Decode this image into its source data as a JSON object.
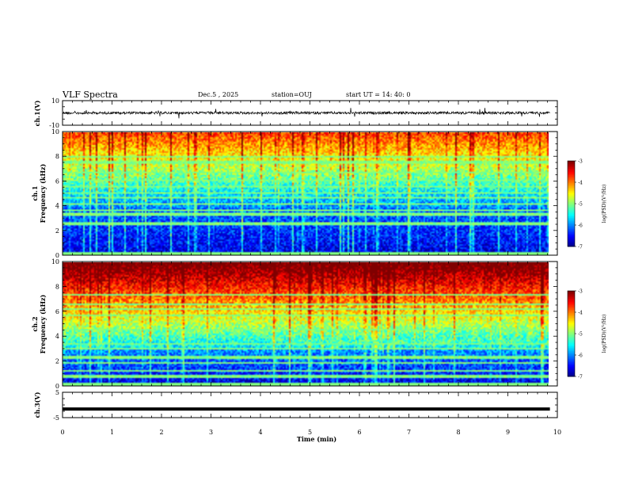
{
  "header": {
    "title": "VLF Spectra",
    "date": "Dec.5 , 2025",
    "station": "station=OUJ",
    "start": "start UT = 14: 40: 0"
  },
  "chart_data": [
    {
      "type": "line",
      "name": "ch1-waveform",
      "ylabel": "ch.1(V)",
      "ylim": [
        -10,
        10
      ],
      "ytick_labels": [
        "10",
        "-10"
      ],
      "baseline": 0,
      "description_values": "noisy waveform near 0 V with spikes"
    },
    {
      "type": "heatmap",
      "name": "ch1-spectrogram",
      "ylabel_top": "ch.1",
      "ylabel": "Frequency (kHz)",
      "ylim": [
        0,
        10
      ],
      "ytick_labels": [
        "0",
        "2",
        "4",
        "6",
        "8",
        "10"
      ],
      "colorbar": {
        "label": "log(PSD)(V²/Hz)",
        "range": [
          -7,
          -3
        ],
        "tick_labels": [
          "-3",
          "-4",
          "-5",
          "-6",
          "-7"
        ]
      }
    },
    {
      "type": "heatmap",
      "name": "ch2-spectrogram",
      "ylabel_top": "ch.2",
      "ylabel": "Frequency (kHz)",
      "ylim": [
        0,
        10
      ],
      "ytick_labels": [
        "0",
        "2",
        "4",
        "6",
        "8",
        "10"
      ],
      "colorbar": {
        "label": "log(PSD)(V²/Hz)",
        "range": [
          -7,
          -3
        ],
        "tick_labels": [
          "-3",
          "-4",
          "-5",
          "-6",
          "-7"
        ]
      }
    },
    {
      "type": "line",
      "name": "ch3-level",
      "ylabel": "ch.3(V)",
      "ylim": [
        -5,
        5
      ],
      "ytick_labels": [
        "5",
        "-5"
      ],
      "level": -1.6
    }
  ],
  "xaxis": {
    "label": "Time (min)",
    "range": [
      0,
      10
    ],
    "tick_labels": [
      "0",
      "1",
      "2",
      "3",
      "4",
      "5",
      "6",
      "7",
      "8",
      "9",
      "10"
    ],
    "data_end": 9.85
  },
  "colors": {
    "jet": [
      "#00007f",
      "#0000ff",
      "#007fff",
      "#00ffff",
      "#7fff7f",
      "#ffff00",
      "#ff7f00",
      "#ff0000",
      "#7f0000"
    ]
  }
}
